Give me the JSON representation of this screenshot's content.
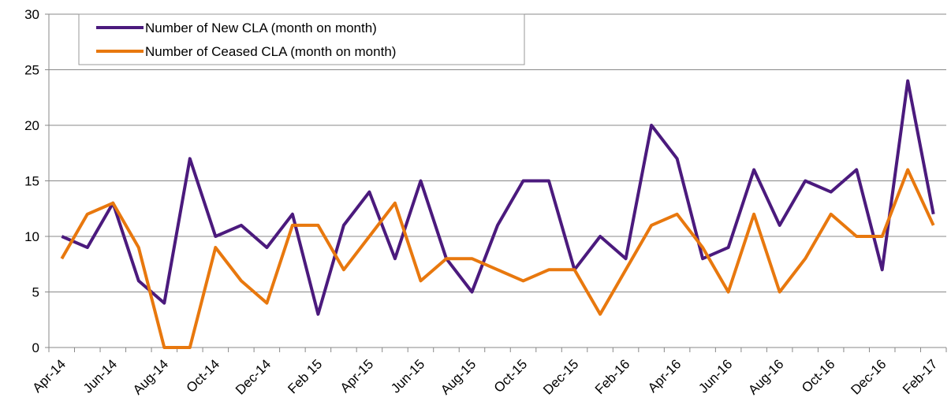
{
  "chart_data": {
    "type": "line",
    "categories": [
      "Apr-14",
      null,
      "Jun-14",
      null,
      "Aug-14",
      null,
      "Oct-14",
      null,
      "Dec-14",
      null,
      "Feb 15",
      null,
      "Apr-15",
      null,
      "Jun-15",
      null,
      "Aug-15",
      null,
      "Oct-15",
      null,
      "Dec-15",
      null,
      "Feb-16",
      null,
      "Apr-16",
      null,
      "Jun-16",
      null,
      "Aug-16",
      null,
      "Oct-16",
      null,
      "Dec-16",
      null,
      "Feb-17"
    ],
    "series": [
      {
        "name": "Number of New CLA (month on month)",
        "color": "#4b1a7d",
        "values": [
          10,
          9,
          13,
          6,
          4,
          17,
          10,
          11,
          9,
          12,
          3,
          11,
          14,
          8,
          15,
          8,
          5,
          11,
          15,
          15,
          7,
          10,
          8,
          20,
          17,
          8,
          9,
          16,
          11,
          15,
          14,
          16,
          7,
          24,
          12
        ]
      },
      {
        "name": "Number of Ceased CLA (month on month)",
        "color": "#e8780e",
        "values": [
          8,
          12,
          13,
          9,
          0,
          0,
          9,
          6,
          4,
          11,
          11,
          7,
          10,
          13,
          6,
          8,
          8,
          7,
          6,
          7,
          7,
          3,
          7,
          11,
          12,
          9,
          5,
          12,
          5,
          8,
          12,
          10,
          10,
          16,
          11
        ]
      }
    ],
    "ylim": [
      0,
      30
    ],
    "yticks": [
      0,
      5,
      10,
      15,
      20,
      25,
      30
    ],
    "grid": true,
    "legend": "top-left"
  }
}
